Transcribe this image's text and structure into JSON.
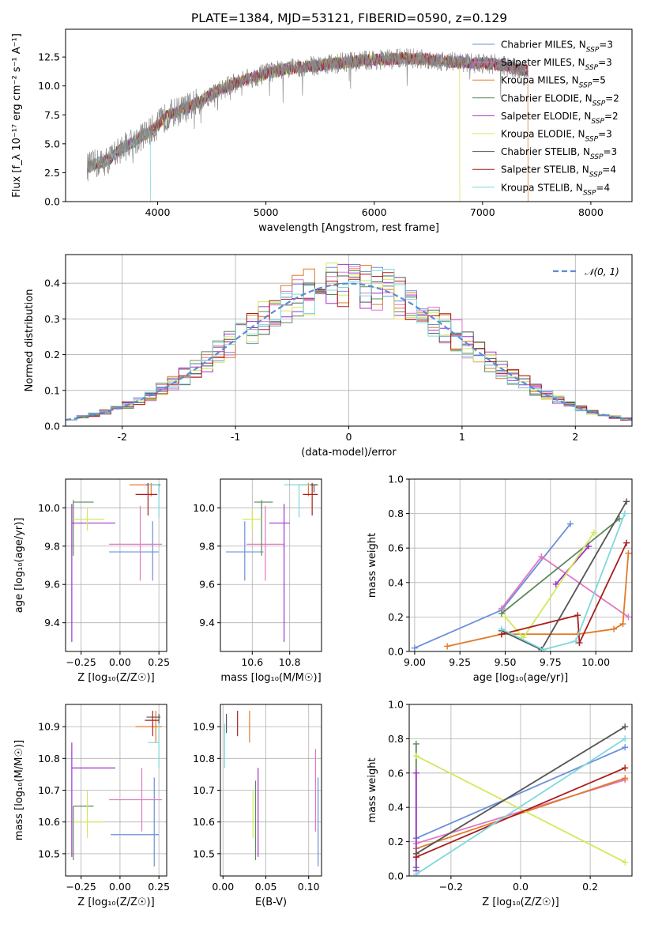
{
  "figure": {
    "title": "PLATE=1384, MJD=53121, FIBERID=0590, z=0.129"
  },
  "palette": {
    "Chabrier MILES": "#6a8fd8",
    "Salpeter MILES": "#e377c2",
    "Kroupa MILES": "#e07b2a",
    "Chabrier ELODIE": "#5a8a5a",
    "Salpeter ELODIE": "#a033cc",
    "Kroupa ELODIE": "#d4e85a",
    "Chabrier STELIB": "#555555",
    "Salpeter STELIB": "#aa1e1e",
    "Kroupa STELIB": "#7fd8dc",
    "spectrum": "#8a8a8a",
    "normal_curve": "#5b8bd6"
  },
  "chart_data": [
    {
      "id": "spectrum",
      "type": "line",
      "title": "PLATE=1384, MJD=53121, FIBERID=0590, z=0.129",
      "xlabel": "wavelength [Angstrom, rest frame]",
      "ylabel": "Flux [f_λ 10⁻¹⁷ erg cm⁻² s⁻¹ A⁻¹]",
      "xlim": [
        3150,
        8380
      ],
      "ylim": [
        0,
        14.9
      ],
      "xticks": [
        4000,
        5000,
        6000,
        7000,
        8000
      ],
      "yticks": [
        0.0,
        2.5,
        5.0,
        7.5,
        10.0,
        12.5
      ],
      "yticklabels": [
        "0.0",
        "2.5",
        "5.0",
        "7.5",
        "10.0",
        "12.5"
      ],
      "grid": false,
      "legend_position": "right",
      "legend": [
        {
          "model": "Chabrier MILES",
          "n": "3"
        },
        {
          "model": "Salpeter MILES",
          "n": "3"
        },
        {
          "model": "Kroupa MILES",
          "n": "5"
        },
        {
          "model": "Chabrier ELODIE",
          "n": "2"
        },
        {
          "model": "Salpeter ELODIE",
          "n": "2"
        },
        {
          "model": "Kroupa ELODIE",
          "n": "3"
        },
        {
          "model": "Chabrier STELIB",
          "n": "3"
        },
        {
          "model": "Salpeter STELIB",
          "n": "4"
        },
        {
          "model": "Kroupa STELIB",
          "n": "4"
        }
      ],
      "continuum_x": [
        3350,
        3550,
        3650,
        3800,
        3950,
        4100,
        4300,
        4500,
        4700,
        4900,
        5100,
        5300,
        5500,
        5700,
        5900,
        6100,
        6300,
        6500,
        6700,
        6900,
        7100,
        7300,
        7420
      ],
      "continuum_y": [
        3.0,
        3.6,
        4.5,
        5.3,
        6.2,
        7.5,
        8.2,
        9.3,
        10.2,
        10.8,
        11.3,
        11.6,
        11.8,
        12.0,
        12.2,
        12.3,
        12.4,
        12.3,
        12.1,
        12.0,
        11.9,
        11.5,
        11.3
      ],
      "model_cutoffs": [
        {
          "model": "Kroupa ELODIE",
          "x": 6790
        },
        {
          "model": "Kroupa MILES",
          "x": 7420
        },
        {
          "model": "Kroupa STELIB",
          "x": 3935
        }
      ]
    },
    {
      "id": "residuals",
      "type": "histogram",
      "xlabel": "(data-model)/error",
      "ylabel": "Normed distribution",
      "xlim": [
        -2.5,
        2.5
      ],
      "ylim": [
        0,
        0.48
      ],
      "xticks": [
        -2,
        -1,
        0,
        1,
        2
      ],
      "yticks": [
        0.0,
        0.1,
        0.2,
        0.3,
        0.4
      ],
      "yticklabels": [
        "0.0",
        "0.1",
        "0.2",
        "0.3",
        "0.4"
      ],
      "grid": true,
      "legend_position": "top-right",
      "legend_label": "𝒩(0, 1)",
      "bin_width": 0.1
    },
    {
      "id": "age-vs-Z",
      "type": "errorbar",
      "xlabel": "Z [log₁₀(Z/Z☉)]",
      "ylabel": "age  [log₁₀(age/yr)]",
      "xlim": [
        -0.35,
        0.3
      ],
      "ylim": [
        9.25,
        10.15
      ],
      "xticks": [
        -0.25,
        0.0,
        0.25
      ],
      "xticklabels": [
        "−0.25",
        "0.00",
        "0.25"
      ],
      "yticks": [
        9.4,
        9.6,
        9.8,
        10.0
      ],
      "yticklabels": [
        "9.4",
        "9.6",
        "9.8",
        "10.0"
      ],
      "grid": true,
      "points": [
        {
          "model": "Chabrier MILES",
          "x": 0.21,
          "xerr": [
            0.28,
            0.04
          ],
          "y": 9.77,
          "yerr": [
            0.15,
            0.16
          ]
        },
        {
          "model": "Salpeter MILES",
          "x": 0.13,
          "xerr": [
            0.2,
            0.14
          ],
          "y": 9.81,
          "yerr": [
            0.19,
            0.2
          ]
        },
        {
          "model": "Kroupa MILES",
          "x": 0.2,
          "xerr": [
            0.14,
            0.05
          ],
          "y": 10.12,
          "yerr": [
            0.06,
            0.01
          ]
        },
        {
          "model": "Chabrier ELODIE",
          "x": -0.3,
          "xerr": [
            0.0,
            0.13
          ],
          "y": 10.03,
          "yerr": [
            0.28,
            0.01
          ]
        },
        {
          "model": "Salpeter ELODIE",
          "x": -0.31,
          "xerr": [
            0.0,
            0.28
          ],
          "y": 9.92,
          "yerr": [
            0.62,
            0.1
          ]
        },
        {
          "model": "Kroupa ELODIE",
          "x": -0.21,
          "xerr": [
            0.09,
            0.11
          ],
          "y": 9.94,
          "yerr": [
            0.06,
            0.06
          ]
        },
        {
          "model": "Chabrier STELIB",
          "x": 0.25,
          "xerr": [
            0.08,
            0.01
          ],
          "y": 10.12,
          "yerr": [
            0.04,
            0.0
          ]
        },
        {
          "model": "Salpeter STELIB",
          "x": 0.18,
          "xerr": [
            0.08,
            0.06
          ],
          "y": 10.07,
          "yerr": [
            0.11,
            0.06
          ]
        },
        {
          "model": "Kroupa STELIB",
          "x": 0.25,
          "xerr": [
            0.07,
            0.0
          ],
          "y": 10.12,
          "yerr": [
            0.17,
            0.0
          ]
        }
      ]
    },
    {
      "id": "age-vs-mass",
      "type": "errorbar",
      "xlabel": "mass [log₁₀(M/M☉)]",
      "xlim": [
        10.43,
        10.97
      ],
      "ylim": [
        9.25,
        10.15
      ],
      "xticks": [
        10.6,
        10.8
      ],
      "xticklabels": [
        "10.6",
        "10.8"
      ],
      "yticks": [
        9.4,
        9.6,
        9.8,
        10.0
      ],
      "yticklabels": [
        "9.4",
        "9.6",
        "9.8",
        "10.0"
      ],
      "grid": true,
      "points": [
        {
          "model": "Chabrier MILES",
          "x": 10.56,
          "xerr": [
            0.1,
            0.1
          ],
          "y": 9.77,
          "yerr": [
            0.15,
            0.16
          ]
        },
        {
          "model": "Salpeter MILES",
          "x": 10.67,
          "xerr": [
            0.1,
            0.1
          ],
          "y": 9.81,
          "yerr": [
            0.19,
            0.2
          ]
        },
        {
          "model": "Kroupa MILES",
          "x": 10.9,
          "xerr": [
            0.05,
            0.05
          ],
          "y": 10.12,
          "yerr": [
            0.06,
            0.01
          ]
        },
        {
          "model": "Chabrier ELODIE",
          "x": 10.65,
          "xerr": [
            0.04,
            0.06
          ],
          "y": 10.03,
          "yerr": [
            0.28,
            0.01
          ]
        },
        {
          "model": "Salpeter ELODIE",
          "x": 10.77,
          "xerr": [
            0.08,
            0.03
          ],
          "y": 9.92,
          "yerr": [
            0.62,
            0.1
          ]
        },
        {
          "model": "Kroupa ELODIE",
          "x": 10.6,
          "xerr": [
            0.05,
            0.05
          ],
          "y": 9.94,
          "yerr": [
            0.06,
            0.06
          ]
        },
        {
          "model": "Chabrier STELIB",
          "x": 10.93,
          "xerr": [
            0.03,
            0.02
          ],
          "y": 10.12,
          "yerr": [
            0.04,
            0.0
          ]
        },
        {
          "model": "Salpeter STELIB",
          "x": 10.92,
          "xerr": [
            0.05,
            0.03
          ],
          "y": 10.07,
          "yerr": [
            0.11,
            0.06
          ]
        },
        {
          "model": "Kroupa STELIB",
          "x": 10.85,
          "xerr": [
            0.08,
            0.06
          ],
          "y": 10.12,
          "yerr": [
            0.17,
            0.0
          ]
        }
      ]
    },
    {
      "id": "mass-weight-vs-age",
      "type": "line",
      "xlabel": "age  [log₁₀(age/yr)]",
      "ylabel": "mass weight",
      "xlim": [
        8.97,
        10.2
      ],
      "ylim": [
        0,
        1
      ],
      "xticks": [
        9.0,
        9.25,
        9.5,
        9.75,
        10.0
      ],
      "xticklabels": [
        "9.00",
        "9.25",
        "9.50",
        "9.75",
        "10.00"
      ],
      "yticks": [
        0.0,
        0.2,
        0.4,
        0.6,
        0.8,
        1.0
      ],
      "yticklabels": [
        "0.0",
        "0.2",
        "0.4",
        "0.6",
        "0.8",
        "1.0"
      ],
      "grid": true,
      "series": [
        {
          "model": "Chabrier MILES",
          "x": [
            9.0,
            9.48,
            9.86
          ],
          "y": [
            0.02,
            0.24,
            0.74
          ]
        },
        {
          "model": "Salpeter MILES",
          "x": [
            9.48,
            9.7,
            10.18
          ],
          "y": [
            0.25,
            0.55,
            0.2
          ]
        },
        {
          "model": "Kroupa MILES",
          "x": [
            9.18,
            9.48,
            9.9,
            10.1,
            10.15,
            10.18
          ],
          "y": [
            0.03,
            0.1,
            0.1,
            0.13,
            0.16,
            0.57
          ]
        },
        {
          "model": "Chabrier ELODIE",
          "x": [
            9.48,
            10.13
          ],
          "y": [
            0.22,
            0.77
          ]
        },
        {
          "model": "Salpeter ELODIE",
          "x": [
            9.78,
            9.96
          ],
          "y": [
            0.39,
            0.61
          ]
        },
        {
          "model": "Kroupa ELODIE",
          "x": [
            9.5,
            9.6,
            9.99
          ],
          "y": [
            0.2,
            0.08,
            0.69
          ]
        },
        {
          "model": "Chabrier STELIB",
          "x": [
            9.48,
            9.7,
            10.17
          ],
          "y": [
            0.12,
            0.01,
            0.87
          ]
        },
        {
          "model": "Salpeter STELIB",
          "x": [
            9.48,
            9.9,
            9.91,
            10.17
          ],
          "y": [
            0.1,
            0.21,
            0.05,
            0.63
          ]
        },
        {
          "model": "Kroupa STELIB",
          "x": [
            9.48,
            9.71,
            9.89,
            10.16
          ],
          "y": [
            0.13,
            0.01,
            0.06,
            0.8
          ]
        }
      ]
    },
    {
      "id": "mass-vs-Z",
      "type": "errorbar",
      "xlabel": "Z [log₁₀(Z/Z☉)]",
      "ylabel": "mass [log₁₀(M/M☉)]",
      "xlim": [
        -0.35,
        0.3
      ],
      "ylim": [
        10.43,
        10.97
      ],
      "xticks": [
        -0.25,
        0.0,
        0.25
      ],
      "xticklabels": [
        "−0.25",
        "0.00",
        "0.25"
      ],
      "yticks": [
        10.5,
        10.6,
        10.7,
        10.8,
        10.9
      ],
      "yticklabels": [
        "10.5",
        "10.6",
        "10.7",
        "10.8",
        "10.9"
      ],
      "grid": true,
      "points": [
        {
          "model": "Chabrier MILES",
          "x": 0.22,
          "xerr": [
            0.28,
            0.03
          ],
          "y": 10.56,
          "yerr": [
            0.1,
            0.18
          ]
        },
        {
          "model": "Salpeter MILES",
          "x": 0.14,
          "xerr": [
            0.21,
            0.13
          ],
          "y": 10.67,
          "yerr": [
            0.1,
            0.1
          ]
        },
        {
          "model": "Kroupa MILES",
          "x": 0.23,
          "xerr": [
            0.13,
            0.04
          ],
          "y": 10.9,
          "yerr": [
            0.05,
            0.05
          ]
        },
        {
          "model": "Chabrier ELODIE",
          "x": -0.3,
          "xerr": [
            0.0,
            0.13
          ],
          "y": 10.65,
          "yerr": [
            0.17,
            0.0
          ]
        },
        {
          "model": "Salpeter ELODIE",
          "x": -0.31,
          "xerr": [
            0.0,
            0.28
          ],
          "y": 10.77,
          "yerr": [
            0.28,
            0.08
          ]
        },
        {
          "model": "Kroupa ELODIE",
          "x": -0.21,
          "xerr": [
            0.09,
            0.11
          ],
          "y": 10.6,
          "yerr": [
            0.05,
            0.1
          ]
        },
        {
          "model": "Chabrier STELIB",
          "x": 0.25,
          "xerr": [
            0.08,
            0.01
          ],
          "y": 10.93,
          "yerr": [
            0.02,
            0.01
          ]
        },
        {
          "model": "Salpeter STELIB",
          "x": 0.21,
          "xerr": [
            0.05,
            0.04
          ],
          "y": 10.92,
          "yerr": [
            0.05,
            0.03
          ]
        },
        {
          "model": "Kroupa STELIB",
          "x": 0.25,
          "xerr": [
            0.07,
            0.0
          ],
          "y": 10.85,
          "yerr": [
            0.08,
            0.06
          ]
        }
      ]
    },
    {
      "id": "mass-vs-ebv",
      "type": "errorbar",
      "xlabel": "E(B-V)",
      "xlim": [
        -0.003,
        0.115
      ],
      "ylim": [
        10.43,
        10.97
      ],
      "xticks": [
        0.0,
        0.05,
        0.1
      ],
      "xticklabels": [
        "0.00",
        "0.05",
        "0.10"
      ],
      "yticks": [
        10.5,
        10.6,
        10.7,
        10.8,
        10.9
      ],
      "yticklabels": [
        "10.5",
        "10.6",
        "10.7",
        "10.8",
        "10.9"
      ],
      "grid": true,
      "points": [
        {
          "model": "Chabrier MILES",
          "x": 0.111,
          "y": 10.56,
          "yerr": [
            0.1,
            0.18
          ]
        },
        {
          "model": "Salpeter MILES",
          "x": 0.108,
          "y": 10.67,
          "yerr": [
            0.1,
            0.16
          ]
        },
        {
          "model": "Kroupa MILES",
          "x": 0.031,
          "y": 10.9,
          "yerr": [
            0.05,
            0.05
          ]
        },
        {
          "model": "Chabrier ELODIE",
          "x": 0.038,
          "y": 10.65,
          "yerr": [
            0.17,
            0.08
          ]
        },
        {
          "model": "Salpeter ELODIE",
          "x": 0.041,
          "y": 10.77,
          "yerr": [
            0.28,
            0.0
          ]
        },
        {
          "model": "Kroupa ELODIE",
          "x": 0.035,
          "y": 10.6,
          "yerr": [
            0.05,
            0.1
          ]
        },
        {
          "model": "Chabrier STELIB",
          "x": 0.004,
          "y": 10.9,
          "yerr": [
            0.02,
            0.04
          ]
        },
        {
          "model": "Salpeter STELIB",
          "x": 0.017,
          "y": 10.92,
          "yerr": [
            0.05,
            0.03
          ]
        },
        {
          "model": "Kroupa STELIB",
          "x": 0.002,
          "y": 10.85,
          "yerr": [
            0.08,
            0.06
          ]
        }
      ]
    },
    {
      "id": "mass-weight-vs-Z",
      "type": "line",
      "xlabel": "Z [log₁₀(Z/Z☉)]",
      "ylabel": "mass weight",
      "xlim": [
        -0.32,
        0.32
      ],
      "ylim": [
        0,
        1
      ],
      "xticks": [
        -0.2,
        0.0,
        0.2
      ],
      "xticklabels": [
        "−0.2",
        "0.0",
        "0.2"
      ],
      "yticks": [
        0.0,
        0.2,
        0.4,
        0.6,
        0.8,
        1.0
      ],
      "yticklabels": [
        "0.0",
        "0.2",
        "0.4",
        "0.6",
        "0.8",
        "1.0"
      ],
      "grid": true,
      "series": [
        {
          "model": "Chabrier MILES",
          "x": [
            -0.3,
            0.3
          ],
          "y": [
            0.22,
            0.75
          ]
        },
        {
          "model": "Salpeter MILES",
          "x": [
            -0.3,
            0.3
          ],
          "y": [
            0.19,
            0.56
          ]
        },
        {
          "model": "Kroupa MILES",
          "x": [
            -0.3,
            0.3
          ],
          "y": [
            0.16,
            0.57
          ]
        },
        {
          "model": "Chabrier ELODIE",
          "x": [
            -0.3,
            -0.3
          ],
          "y": [
            0.05,
            0.77
          ]
        },
        {
          "model": "Salpeter ELODIE",
          "x": [
            -0.3,
            -0.3
          ],
          "y": [
            0.03,
            0.6
          ]
        },
        {
          "model": "Kroupa ELODIE",
          "x": [
            -0.3,
            0.3
          ],
          "y": [
            0.7,
            0.08
          ]
        },
        {
          "model": "Chabrier STELIB",
          "x": [
            -0.3,
            0.3
          ],
          "y": [
            0.13,
            0.87
          ]
        },
        {
          "model": "Salpeter STELIB",
          "x": [
            -0.3,
            0.3
          ],
          "y": [
            0.11,
            0.63
          ]
        },
        {
          "model": "Kroupa STELIB",
          "x": [
            -0.3,
            0.3
          ],
          "y": [
            0.01,
            0.8
          ]
        }
      ]
    }
  ]
}
